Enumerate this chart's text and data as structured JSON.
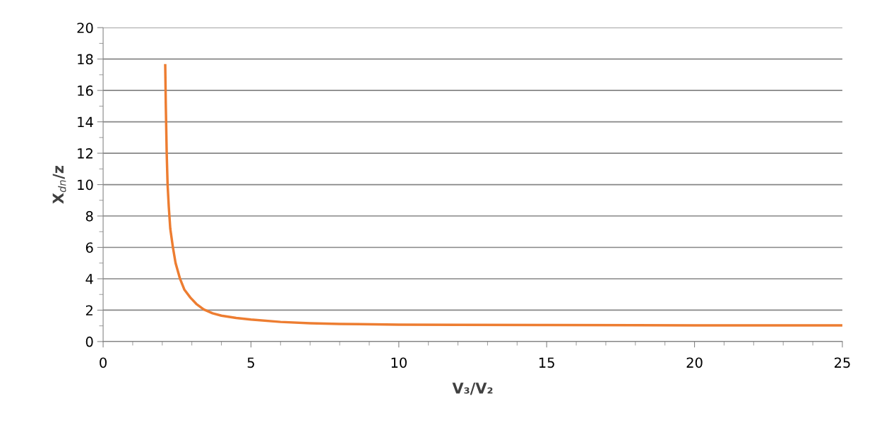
{
  "chart_data": {
    "type": "line",
    "xlabel": "V₃/V₂",
    "ylabel": "X$_{dn}$/z",
    "series": [
      {
        "color": "#ed7d31",
        "x": [
          2.1,
          2.12,
          2.15,
          2.18,
          2.22,
          2.27,
          2.36,
          2.45,
          2.6,
          2.75,
          2.95,
          3.15,
          3.4,
          3.7,
          4,
          4.5,
          5,
          6,
          7,
          8,
          10,
          12,
          15,
          18,
          20,
          22,
          25
        ],
        "values": [
          17.6,
          15,
          12,
          10,
          8.6,
          7.2,
          6,
          5,
          4,
          3.3,
          2.8,
          2.4,
          2.05,
          1.8,
          1.65,
          1.5,
          1.4,
          1.25,
          1.17,
          1.12,
          1.08,
          1.06,
          1.05,
          1.04,
          1.03,
          1.03,
          1.03
        ]
      }
    ],
    "xlim": [
      0,
      25
    ],
    "xticks": [
      0,
      5,
      10,
      15,
      20,
      25
    ],
    "ylim": [
      0,
      20
    ],
    "yticks": [
      0,
      2,
      4,
      6,
      8,
      10,
      12,
      14,
      16,
      18,
      20
    ],
    "grid": "y",
    "legend": false,
    "marker": "none",
    "line_style": "solid"
  }
}
